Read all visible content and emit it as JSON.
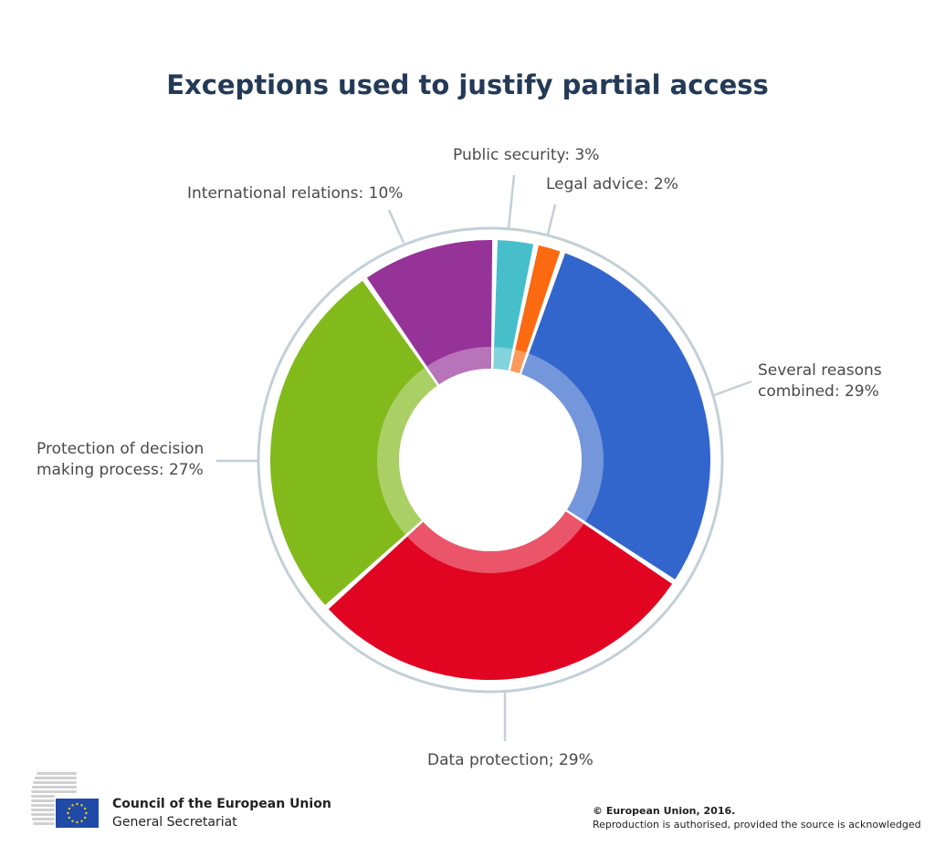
{
  "chart_data": {
    "type": "pie",
    "title": "Exceptions used to justify partial access",
    "slices": [
      {
        "label": "Public security",
        "value": 3,
        "color": "#47bfcb",
        "display_lines": [
          "Public security: 3%"
        ]
      },
      {
        "label": "Legal advice",
        "value": 2,
        "color": "#fb6a10",
        "display_lines": [
          "Legal advice: 2%"
        ]
      },
      {
        "label": "Several reasons combined",
        "value": 29,
        "color": "#3366cc",
        "display_lines": [
          "Several reasons",
          "combined: 29%"
        ]
      },
      {
        "label": "Data protection",
        "value": 29,
        "color": "#e10522",
        "display_lines": [
          "Data protection; 29%"
        ]
      },
      {
        "label": "Protection of decision making process",
        "value": 27,
        "color": "#82ba1c",
        "display_lines": [
          "Protection of decision",
          "making process: 27%"
        ]
      },
      {
        "label": "International relations",
        "value": 10,
        "color": "#963399",
        "display_lines": [
          "International relations: 10%"
        ]
      }
    ],
    "ring_color": "#c3d0d6"
  },
  "footer": {
    "org_name": "Council of the European Union",
    "org_sub": "General Secretariat",
    "copyright": "© European Union, 2016.",
    "reproduction": "Reproduction is authorised, provided the source is acknowledged"
  },
  "icons": {
    "logo": "council-building-icon",
    "flag": "eu-flag-icon"
  },
  "colors": {
    "title": "#243a56",
    "eu_blue": "#1f4aa8",
    "eu_star": "#ffd200"
  }
}
